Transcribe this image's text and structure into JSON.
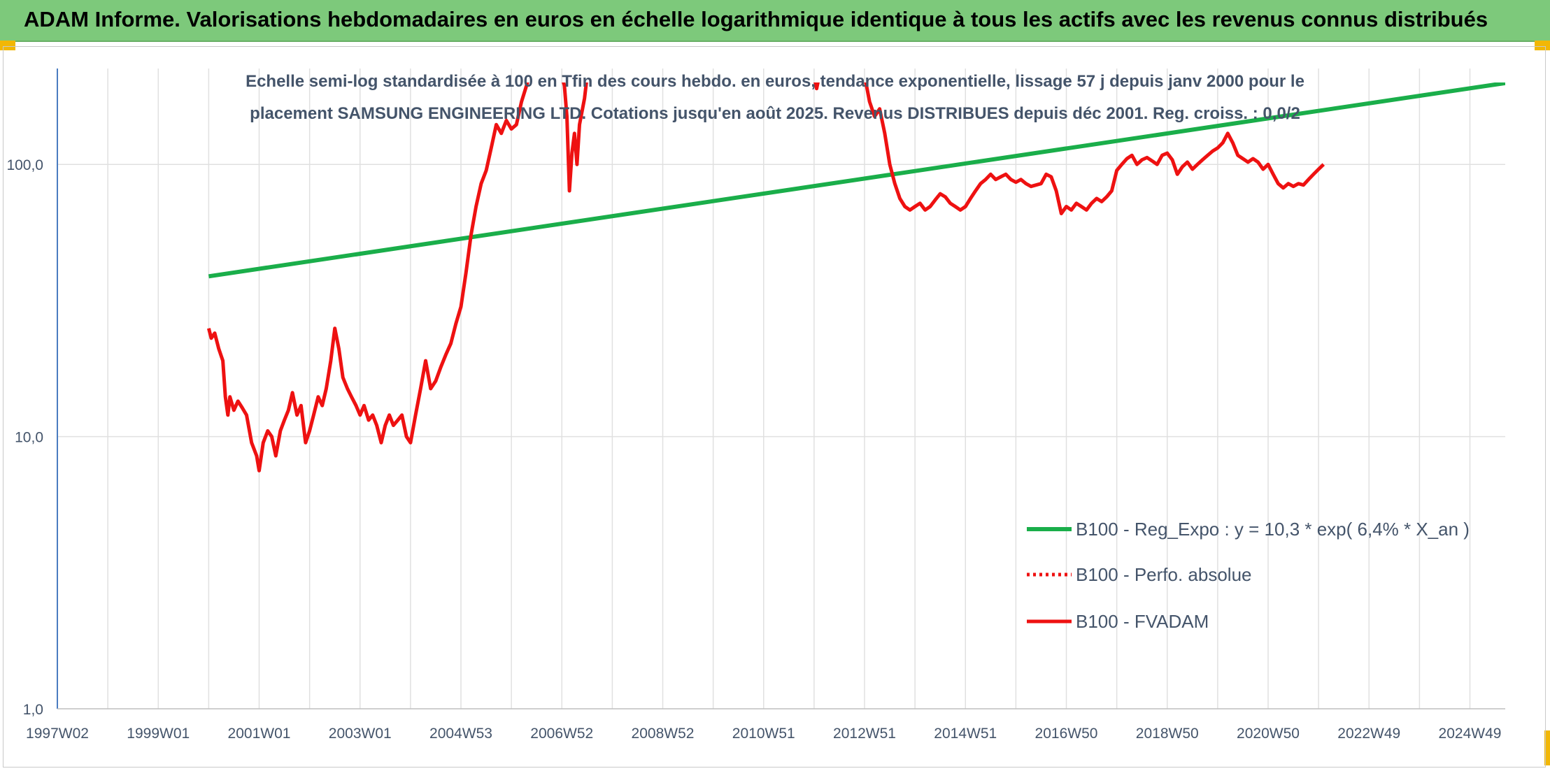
{
  "banner": {
    "title": "ADAM Informe. Valorisations hebdomadaires en euros en échelle logarithmique identique à tous les actifs avec les revenus connus distribués"
  },
  "colors": {
    "banner_bg": "#7dc97b",
    "corner": "#f2b705",
    "trend": "#1aae4a",
    "fvadam": "#ee1111",
    "perfo": "#ee1111",
    "grid": "#e0e0e0",
    "axis": "#4a7cc0",
    "text": "#44546a"
  },
  "chart_data": {
    "type": "line",
    "title_lines": [
      "Echelle semi-log standardisée à 100 en Tfin des cours hebdo. en euros, tendance exponentielle, lissage 57 j depuis janv 2000 pour le",
      "placement SAMSUNG ENGINEERING LTD. Cotations jusqu'en août 2025. Revenus DISTRIBUES depuis déc 2001. Reg. croiss. : 0,0/2"
    ],
    "y_scale": "log",
    "ylim": [
      1,
      200
    ],
    "y_ticks": [
      1,
      10,
      100
    ],
    "y_tick_labels": [
      "1,0",
      "10,0",
      "100,0"
    ],
    "x_range": [
      1997.0,
      2025.7
    ],
    "x_ticks": [
      1997.0,
      1999.0,
      2001.0,
      2003.0,
      2005.0,
      2007.0,
      2009.0,
      2011.0,
      2013.0,
      2015.0,
      2017.0,
      2019.0,
      2021.0,
      2023.0,
      2025.0
    ],
    "x_tick_labels": [
      "1997W02",
      "1999W01",
      "2001W01",
      "2003W01",
      "2004W53",
      "2006W52",
      "2008W52",
      "2010W51",
      "2012W51",
      "2014W51",
      "2016W50",
      "2018W50",
      "2020W50",
      "2022W49",
      "2024W49"
    ],
    "grid": true,
    "legend_position": "bottom-right",
    "series": [
      {
        "name": "B100 - Reg_Expo : y = 10,3 * exp( 6,4% *  X_an )",
        "style": "solid-green",
        "points": [
          [
            2000.0,
            38.8
          ],
          [
            2025.7,
            199.0
          ]
        ]
      },
      {
        "name": "B100 - Perfo. absolue",
        "style": "dotted-red",
        "points": []
      },
      {
        "name": "B100 - FVADAM",
        "style": "solid-red",
        "points": [
          [
            2000.0,
            25.0
          ],
          [
            2000.05,
            23.0
          ],
          [
            2000.12,
            24.0
          ],
          [
            2000.2,
            21.0
          ],
          [
            2000.28,
            19.0
          ],
          [
            2000.33,
            14.0
          ],
          [
            2000.38,
            12.0
          ],
          [
            2000.42,
            14.0
          ],
          [
            2000.5,
            12.5
          ],
          [
            2000.58,
            13.5
          ],
          [
            2000.66,
            12.8
          ],
          [
            2000.75,
            12.0
          ],
          [
            2000.85,
            9.5
          ],
          [
            2000.95,
            8.5
          ],
          [
            2001.0,
            7.5
          ],
          [
            2001.08,
            9.5
          ],
          [
            2001.17,
            10.5
          ],
          [
            2001.25,
            10.0
          ],
          [
            2001.33,
            8.5
          ],
          [
            2001.42,
            10.5
          ],
          [
            2001.5,
            11.5
          ],
          [
            2001.58,
            12.5
          ],
          [
            2001.66,
            14.5
          ],
          [
            2001.75,
            12.0
          ],
          [
            2001.83,
            13.0
          ],
          [
            2001.92,
            9.5
          ],
          [
            2002.0,
            10.5
          ],
          [
            2002.08,
            12.0
          ],
          [
            2002.17,
            14.0
          ],
          [
            2002.25,
            13.0
          ],
          [
            2002.33,
            15.0
          ],
          [
            2002.42,
            19.0
          ],
          [
            2002.5,
            25.0
          ],
          [
            2002.58,
            21.0
          ],
          [
            2002.66,
            16.5
          ],
          [
            2002.75,
            15.0
          ],
          [
            2002.83,
            14.0
          ],
          [
            2002.92,
            13.0
          ],
          [
            2003.0,
            12.0
          ],
          [
            2003.08,
            13.0
          ],
          [
            2003.17,
            11.5
          ],
          [
            2003.25,
            12.0
          ],
          [
            2003.33,
            11.0
          ],
          [
            2003.42,
            9.5
          ],
          [
            2003.5,
            11.0
          ],
          [
            2003.58,
            12.0
          ],
          [
            2003.66,
            11.0
          ],
          [
            2003.75,
            11.5
          ],
          [
            2003.83,
            12.0
          ],
          [
            2003.92,
            10.0
          ],
          [
            2004.0,
            9.5
          ],
          [
            2004.1,
            12.0
          ],
          [
            2004.2,
            15.0
          ],
          [
            2004.3,
            19.0
          ],
          [
            2004.4,
            15.0
          ],
          [
            2004.5,
            16.0
          ],
          [
            2004.6,
            18.0
          ],
          [
            2004.7,
            20.0
          ],
          [
            2004.8,
            22.0
          ],
          [
            2004.9,
            26.0
          ],
          [
            2005.0,
            30.0
          ],
          [
            2005.1,
            40.0
          ],
          [
            2005.2,
            55.0
          ],
          [
            2005.3,
            70.0
          ],
          [
            2005.4,
            85.0
          ],
          [
            2005.5,
            95.0
          ],
          [
            2005.6,
            115.0
          ],
          [
            2005.7,
            140.0
          ],
          [
            2005.8,
            130.0
          ],
          [
            2005.9,
            145.0
          ],
          [
            2006.0,
            135.0
          ],
          [
            2006.1,
            140.0
          ],
          [
            2006.2,
            170.0
          ],
          [
            2006.3,
            195.0
          ],
          [
            2006.35,
            210.0
          ],
          [
            2007.0,
            210.0
          ],
          [
            2007.05,
            195.0
          ],
          [
            2007.1,
            150.0
          ],
          [
            2007.15,
            80.0
          ],
          [
            2007.2,
            110.0
          ],
          [
            2007.25,
            130.0
          ],
          [
            2007.3,
            100.0
          ],
          [
            2007.35,
            140.0
          ],
          [
            2007.45,
            175.0
          ],
          [
            2007.5,
            210.0
          ],
          [
            2012.0,
            210.0
          ],
          [
            2012.05,
            190.0
          ],
          [
            2012.1,
            210.0
          ],
          [
            2013.0,
            210.0
          ],
          [
            2013.05,
            190.0
          ],
          [
            2013.1,
            170.0
          ],
          [
            2013.2,
            150.0
          ],
          [
            2013.3,
            160.0
          ],
          [
            2013.4,
            130.0
          ],
          [
            2013.5,
            100.0
          ],
          [
            2013.6,
            85.0
          ],
          [
            2013.7,
            75.0
          ],
          [
            2013.8,
            70.0
          ],
          [
            2013.9,
            68.0
          ],
          [
            2014.0,
            70.0
          ],
          [
            2014.1,
            72.0
          ],
          [
            2014.2,
            68.0
          ],
          [
            2014.3,
            70.0
          ],
          [
            2014.4,
            74.0
          ],
          [
            2014.5,
            78.0
          ],
          [
            2014.6,
            76.0
          ],
          [
            2014.7,
            72.0
          ],
          [
            2014.8,
            70.0
          ],
          [
            2014.9,
            68.0
          ],
          [
            2015.0,
            70.0
          ],
          [
            2015.1,
            75.0
          ],
          [
            2015.2,
            80.0
          ],
          [
            2015.3,
            85.0
          ],
          [
            2015.4,
            88.0
          ],
          [
            2015.5,
            92.0
          ],
          [
            2015.6,
            88.0
          ],
          [
            2015.7,
            90.0
          ],
          [
            2015.8,
            92.0
          ],
          [
            2015.9,
            88.0
          ],
          [
            2016.0,
            86.0
          ],
          [
            2016.1,
            88.0
          ],
          [
            2016.2,
            85.0
          ],
          [
            2016.3,
            83.0
          ],
          [
            2016.4,
            84.0
          ],
          [
            2016.5,
            85.0
          ],
          [
            2016.6,
            92.0
          ],
          [
            2016.7,
            90.0
          ],
          [
            2016.8,
            80.0
          ],
          [
            2016.9,
            66.0
          ],
          [
            2017.0,
            70.0
          ],
          [
            2017.1,
            68.0
          ],
          [
            2017.2,
            72.0
          ],
          [
            2017.3,
            70.0
          ],
          [
            2017.4,
            68.0
          ],
          [
            2017.5,
            72.0
          ],
          [
            2017.6,
            75.0
          ],
          [
            2017.7,
            73.0
          ],
          [
            2017.8,
            76.0
          ],
          [
            2017.9,
            80.0
          ],
          [
            2018.0,
            95.0
          ],
          [
            2018.1,
            100.0
          ],
          [
            2018.2,
            105.0
          ],
          [
            2018.3,
            108.0
          ],
          [
            2018.4,
            100.0
          ],
          [
            2018.5,
            104.0
          ],
          [
            2018.6,
            106.0
          ],
          [
            2018.7,
            103.0
          ],
          [
            2018.8,
            100.0
          ],
          [
            2018.9,
            108.0
          ],
          [
            2019.0,
            110.0
          ],
          [
            2019.1,
            104.0
          ],
          [
            2019.2,
            92.0
          ],
          [
            2019.3,
            98.0
          ],
          [
            2019.4,
            102.0
          ],
          [
            2019.5,
            96.0
          ],
          [
            2019.6,
            100.0
          ],
          [
            2019.7,
            104.0
          ],
          [
            2019.8,
            108.0
          ],
          [
            2019.9,
            112.0
          ],
          [
            2020.0,
            115.0
          ],
          [
            2020.1,
            120.0
          ],
          [
            2020.2,
            130.0
          ],
          [
            2020.3,
            120.0
          ],
          [
            2020.4,
            108.0
          ],
          [
            2020.5,
            105.0
          ],
          [
            2020.6,
            102.0
          ],
          [
            2020.7,
            105.0
          ],
          [
            2020.8,
            102.0
          ],
          [
            2020.9,
            96.0
          ],
          [
            2021.0,
            100.0
          ],
          [
            2021.1,
            92.0
          ],
          [
            2021.2,
            85.0
          ],
          [
            2021.3,
            82.0
          ],
          [
            2021.4,
            85.0
          ],
          [
            2021.5,
            83.0
          ],
          [
            2021.6,
            85.0
          ],
          [
            2021.7,
            84.0
          ],
          [
            2021.8,
            88.0
          ],
          [
            2021.9,
            92.0
          ],
          [
            2022.0,
            96.0
          ],
          [
            2022.1,
            100.0
          ]
        ]
      }
    ],
    "note": "x values in fractional years (1997W02 ≈ 1997.0)"
  }
}
